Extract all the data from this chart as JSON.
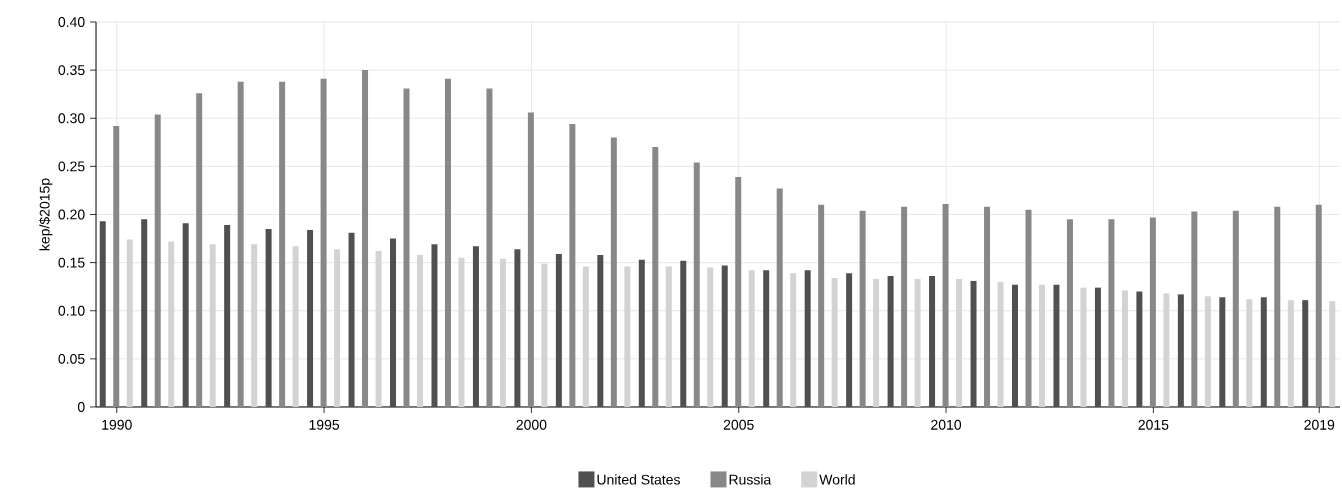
{
  "chart_data": {
    "type": "bar",
    "ylabel": "kep/$2015p",
    "x": [
      1990,
      1991,
      1992,
      1993,
      1994,
      1995,
      1996,
      1997,
      1998,
      1999,
      2000,
      2001,
      2002,
      2003,
      2004,
      2005,
      2006,
      2007,
      2008,
      2009,
      2010,
      2011,
      2012,
      2013,
      2014,
      2015,
      2016,
      2017,
      2018,
      2019
    ],
    "series": [
      {
        "name": "United States",
        "color": "#505050",
        "values": [
          0.193,
          0.195,
          0.191,
          0.189,
          0.185,
          0.184,
          0.181,
          0.175,
          0.169,
          0.167,
          0.164,
          0.159,
          0.158,
          0.153,
          0.152,
          0.147,
          0.142,
          0.142,
          0.139,
          0.136,
          0.136,
          0.131,
          0.127,
          0.127,
          0.124,
          0.12,
          0.117,
          0.114,
          0.114,
          0.111
        ]
      },
      {
        "name": "Russia",
        "color": "#888888",
        "values": [
          0.292,
          0.304,
          0.326,
          0.338,
          0.338,
          0.341,
          0.35,
          0.331,
          0.341,
          0.331,
          0.306,
          0.294,
          0.28,
          0.27,
          0.254,
          0.239,
          0.227,
          0.21,
          0.204,
          0.208,
          0.211,
          0.208,
          0.205,
          0.195,
          0.195,
          0.197,
          0.203,
          0.204,
          0.208,
          0.21
        ]
      },
      {
        "name": "World",
        "color": "#d3d3d3",
        "values": [
          0.174,
          0.172,
          0.169,
          0.169,
          0.167,
          0.164,
          0.162,
          0.158,
          0.155,
          0.154,
          0.149,
          0.146,
          0.146,
          0.146,
          0.145,
          0.142,
          0.139,
          0.134,
          0.133,
          0.133,
          0.133,
          0.13,
          0.127,
          0.124,
          0.121,
          0.118,
          0.115,
          0.112,
          0.111,
          0.11
        ]
      }
    ],
    "xlim": [
      1989.5,
      2019.5
    ],
    "xticks": [
      1990,
      1995,
      2000,
      2005,
      2010,
      2015,
      2019
    ],
    "ylim": [
      0,
      0.4
    ],
    "yticks": [
      {
        "value": 0,
        "label": "0"
      },
      {
        "value": 0.05,
        "label": "0.05"
      },
      {
        "value": 0.1,
        "label": "0.10"
      },
      {
        "value": 0.15,
        "label": "0.15"
      },
      {
        "value": 0.2,
        "label": "0.20"
      },
      {
        "value": 0.25,
        "label": "0.25"
      },
      {
        "value": 0.3,
        "label": "0.30"
      },
      {
        "value": 0.35,
        "label": "0.35"
      },
      {
        "value": 0.4,
        "label": "0.40"
      }
    ],
    "grid": true,
    "legend": "bottom"
  }
}
